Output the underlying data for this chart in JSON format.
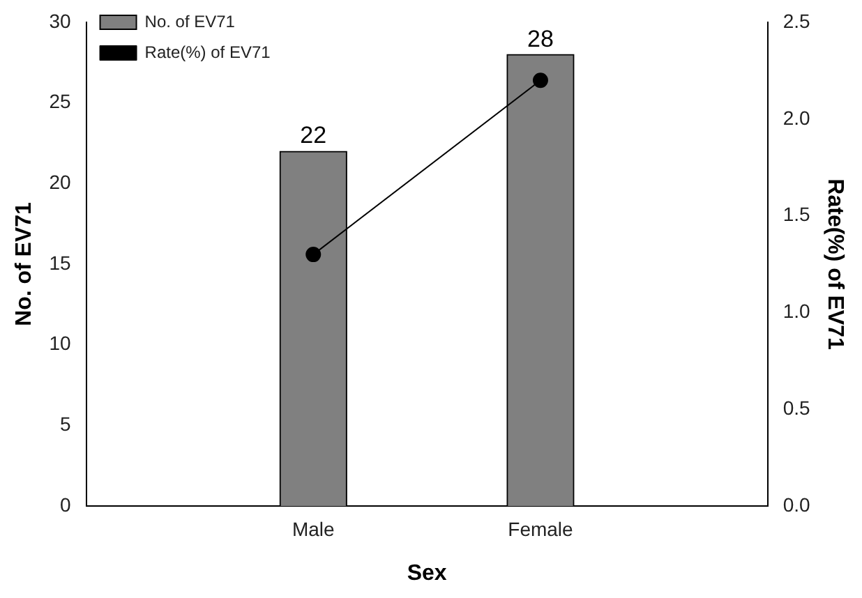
{
  "chart_data": {
    "type": "bar",
    "xlabel": "Sex",
    "ylabel": "No. of EV71",
    "y2label": "Rate(%) of EV71",
    "categories": [
      null,
      "Male",
      "Female",
      null
    ],
    "series": [
      {
        "name": "No. of EV71",
        "color": "#808080",
        "values": [
          null,
          22,
          28,
          null
        ],
        "value_labels": [
          null,
          "22",
          "28",
          null
        ]
      },
      {
        "name": "Rate(%) of EV71",
        "type": "line",
        "axis": "y2",
        "color": "#000000",
        "values": [
          null,
          1.3,
          2.2,
          null
        ],
        "marker": "circle"
      }
    ],
    "ylim": [
      0,
      30
    ],
    "yticks": [
      0,
      5,
      10,
      15,
      20,
      25,
      30
    ],
    "y2lim": [
      0,
      2.5
    ],
    "y2ticks": [
      {
        "value": 0,
        "label": "0.0"
      },
      {
        "value": 0.5,
        "label": "0.5"
      },
      {
        "value": 1,
        "label": "1.0"
      },
      {
        "value": 1.5,
        "label": "1.5"
      },
      {
        "value": 2,
        "label": "2.0"
      },
      {
        "value": 2.5,
        "label": "2.5"
      }
    ],
    "grid": false,
    "legend": "top left"
  }
}
